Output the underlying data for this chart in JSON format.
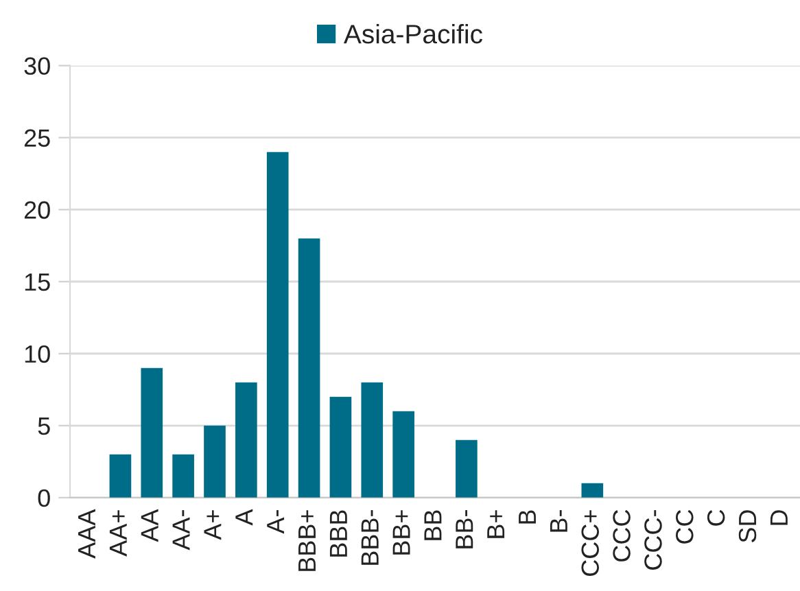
{
  "chart_data": {
    "type": "bar",
    "categories": [
      "AAA",
      "AA+",
      "AA",
      "AA-",
      "A+",
      "A",
      "A-",
      "BBB+",
      "BBB",
      "BBB-",
      "BB+",
      "BB",
      "BB-",
      "B+",
      "B",
      "B-",
      "CCC+",
      "CCC",
      "CCC-",
      "CC",
      "C",
      "SD",
      "D"
    ],
    "series": [
      {
        "name": "Asia-Pacific",
        "color": "#006d88",
        "values": [
          0,
          3,
          9,
          3,
          5,
          8,
          24,
          18,
          7,
          8,
          6,
          0,
          4,
          0,
          0,
          0,
          1,
          0,
          0,
          0,
          0,
          0,
          0
        ]
      }
    ],
    "ylim": [
      0,
      30
    ],
    "yticks": [
      0,
      5,
      10,
      15,
      20,
      25,
      30
    ],
    "grid": "y",
    "legend": "top"
  }
}
